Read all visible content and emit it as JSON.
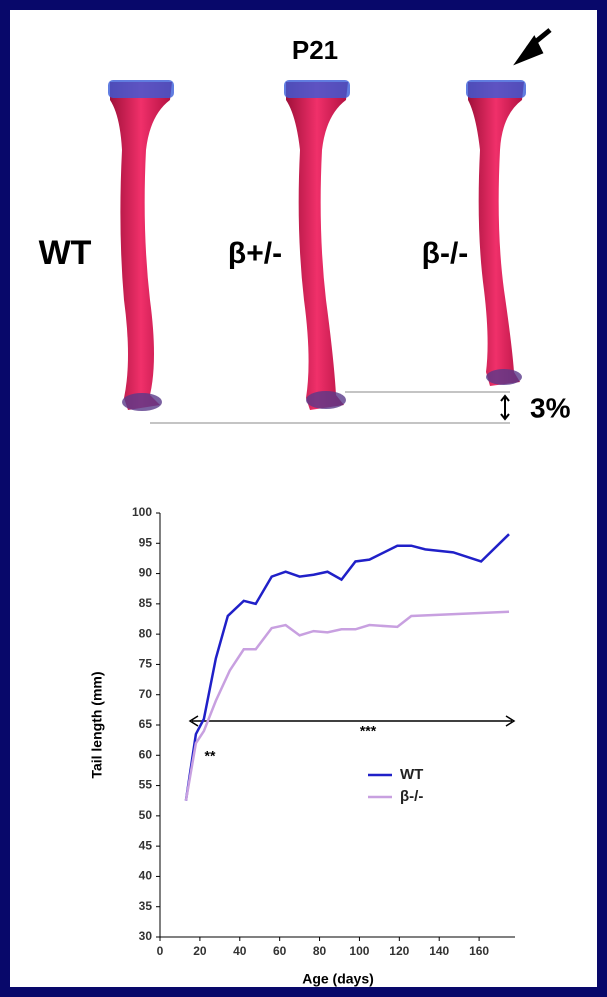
{
  "figure": {
    "panel_title": "P21",
    "labels": [
      "WT",
      "β+/-",
      "β-/-"
    ],
    "difference": "3%"
  },
  "chart_data": {
    "type": "line",
    "xlabel": "Age (days)",
    "ylabel": "Tail length (mm)",
    "xlim": [
      0,
      178
    ],
    "ylim": [
      30,
      100
    ],
    "xticks": [
      0,
      20,
      40,
      60,
      80,
      100,
      120,
      140,
      160
    ],
    "yticks": [
      30,
      35,
      40,
      45,
      50,
      55,
      60,
      65,
      70,
      75,
      80,
      85,
      90,
      95,
      100
    ],
    "annotations": [
      "**",
      "***"
    ],
    "legend": "lower right",
    "series": [
      {
        "name": "WT",
        "color": "#2020c8",
        "x": [
          13,
          18,
          22,
          28,
          34,
          42,
          48,
          56,
          63,
          70,
          77,
          84,
          91,
          98,
          105,
          119,
          126,
          133,
          147,
          161,
          175
        ],
        "values": [
          52.5,
          63.5,
          66,
          76,
          83,
          85.5,
          85,
          89.5,
          90.3,
          89.5,
          89.8,
          90.3,
          89,
          92,
          92.3,
          94.6,
          94.6,
          94,
          93.5,
          92,
          96.5
        ]
      },
      {
        "name": "β-/-",
        "color": "#c8a0e0",
        "x": [
          13,
          18,
          22,
          28,
          35,
          42,
          48,
          56,
          63,
          70,
          77,
          84,
          91,
          98,
          105,
          119,
          126,
          175
        ],
        "values": [
          52.5,
          62,
          64,
          69,
          74,
          77.5,
          77.5,
          81,
          81.5,
          79.8,
          80.5,
          80.3,
          80.8,
          80.8,
          81.5,
          81.2,
          83,
          83.7
        ]
      }
    ]
  }
}
